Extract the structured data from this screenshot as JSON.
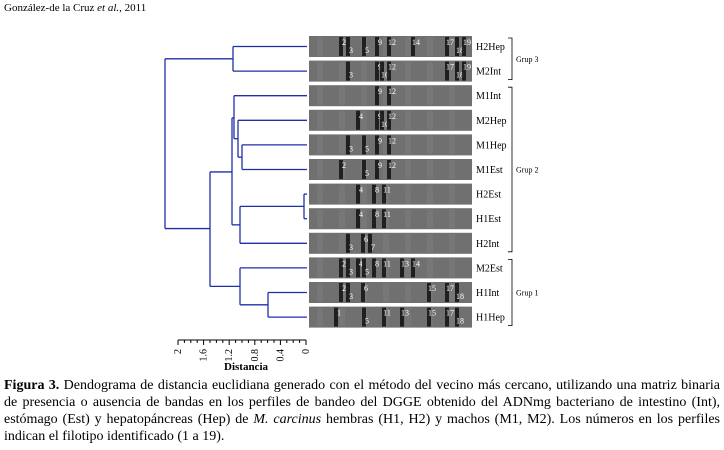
{
  "header": {
    "authors": "González-de la Cruz",
    "etal": " et al.",
    "year": ", 2011"
  },
  "figure": {
    "axis_title": "Distancia",
    "axis_ticks": [
      "2",
      "1.6",
      "1.2",
      "0.8",
      "0.4",
      "0"
    ],
    "groups": [
      "Grup 3",
      "Grup 2",
      "Grup 1"
    ],
    "lanes": [
      {
        "label": "H2Hep",
        "bands": [
          {
            "n": "2"
          },
          {
            "n": "3"
          },
          {
            "n": "5"
          },
          {
            "n": "9"
          },
          {
            "n": "12"
          },
          {
            "n": "14"
          },
          {
            "n": "17"
          },
          {
            "n": "18"
          },
          {
            "n": "19"
          }
        ]
      },
      {
        "label": "M2Int",
        "bands": [
          {
            "n": "3"
          },
          {
            "n": "9"
          },
          {
            "n": "10"
          },
          {
            "n": "12"
          },
          {
            "n": "17"
          },
          {
            "n": "18"
          },
          {
            "n": "19"
          }
        ]
      },
      {
        "label": "M1Int",
        "bands": [
          {
            "n": "9"
          },
          {
            "n": "12"
          }
        ]
      },
      {
        "label": "M2Hep",
        "bands": [
          {
            "n": "4"
          },
          {
            "n": "9"
          },
          {
            "n": "10"
          },
          {
            "n": "12"
          }
        ]
      },
      {
        "label": "M1Hep",
        "bands": [
          {
            "n": "3"
          },
          {
            "n": "5"
          },
          {
            "n": "9"
          },
          {
            "n": "12"
          }
        ]
      },
      {
        "label": "M1Est",
        "bands": [
          {
            "n": "2"
          },
          {
            "n": "5"
          },
          {
            "n": "9"
          },
          {
            "n": "12"
          }
        ]
      },
      {
        "label": "H2Est",
        "bands": [
          {
            "n": "4"
          },
          {
            "n": "8"
          },
          {
            "n": "11"
          }
        ]
      },
      {
        "label": "H1Est",
        "bands": [
          {
            "n": "4"
          },
          {
            "n": "8"
          },
          {
            "n": "11"
          }
        ]
      },
      {
        "label": "H2Int",
        "bands": [
          {
            "n": "3"
          },
          {
            "n": "6"
          },
          {
            "n": "7"
          }
        ]
      },
      {
        "label": "M2Est",
        "bands": [
          {
            "n": "2"
          },
          {
            "n": "3"
          },
          {
            "n": "4"
          },
          {
            "n": "5"
          },
          {
            "n": "8"
          },
          {
            "n": "11"
          },
          {
            "n": "13"
          },
          {
            "n": "14"
          }
        ]
      },
      {
        "label": "H1Int",
        "bands": [
          {
            "n": "2"
          },
          {
            "n": "3"
          },
          {
            "n": "6"
          },
          {
            "n": "15"
          },
          {
            "n": "17"
          },
          {
            "n": "18"
          }
        ]
      },
      {
        "label": "H1Hep",
        "bands": [
          {
            "n": "1"
          },
          {
            "n": "5"
          },
          {
            "n": "11"
          },
          {
            "n": "13"
          },
          {
            "n": "15"
          },
          {
            "n": "17"
          },
          {
            "n": "18"
          }
        ]
      }
    ]
  },
  "caption": {
    "label": "Figura 3.",
    "text1": " Dendograma de distancia euclidiana generado con el método del vecino más cercano, utilizando una matriz binaria de presencia o ausencia de bandas en los perfiles de bandeo del DGGE obtenido del ADNmg bacteriano de intestino (Int), estómago (Est) y hepatopáncreas (Hep) de ",
    "species": "M. carcinus",
    "text2": " hembras (H1, H2) y machos (M1, M2). Los números en los perfiles indican el filotipo identificado (1 a 19)."
  }
}
